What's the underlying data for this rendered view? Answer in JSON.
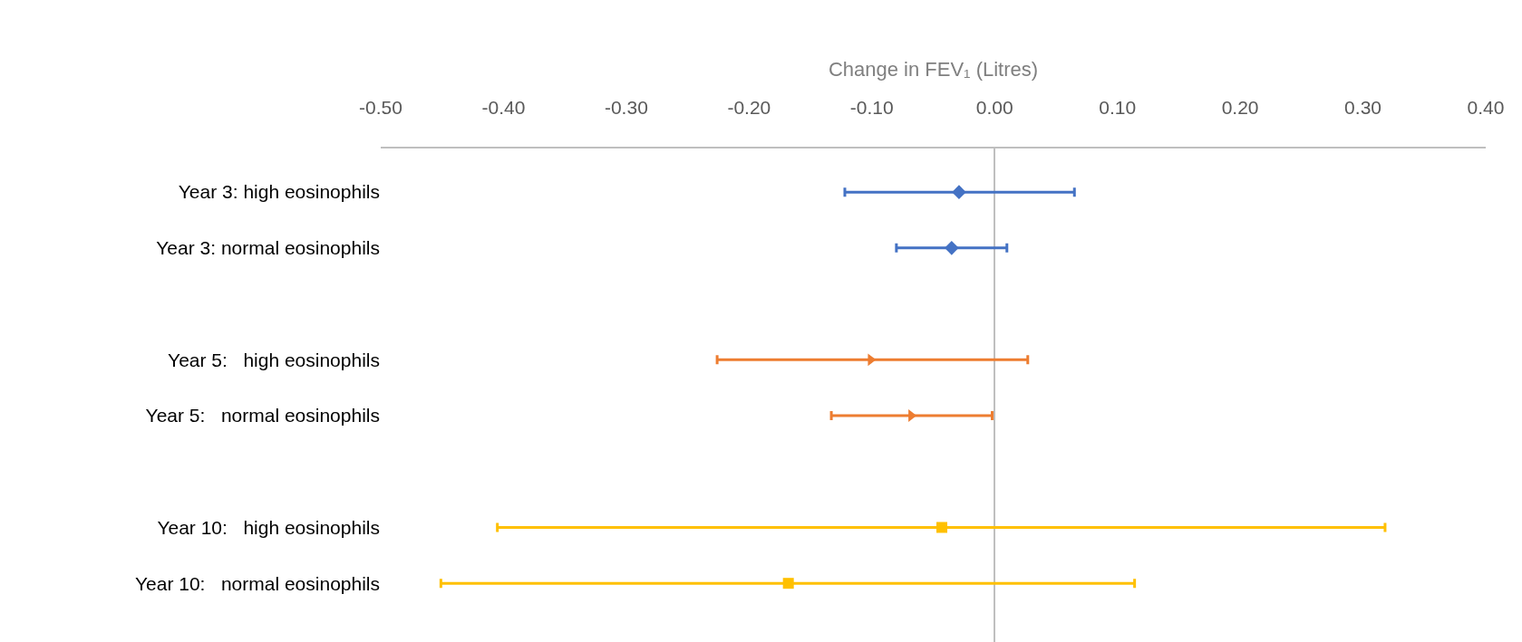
{
  "chart_data": {
    "type": "scatter",
    "orientation": "horizontal",
    "xlabel": "Change in FEV₁ (Litres)",
    "categories": [
      "Year 3: high eosinophils",
      "Year 3: normal eosinophils",
      null,
      "Year 5:   high eosinophils",
      "Year 5:   normal eosinophils",
      null,
      "Year 10:   high eosinophils",
      "Year 10:   normal eosinophils"
    ],
    "series": [
      {
        "color": "#4472c4",
        "marker": "diamond",
        "values": [
          -0.029,
          -0.035,
          null,
          null,
          null,
          null,
          null,
          null
        ],
        "errors": [
          [
            -0.122,
            0.065
          ],
          [
            -0.08,
            0.01
          ],
          null,
          null,
          null,
          null,
          null,
          null
        ]
      },
      {
        "color": "#ed7d31",
        "marker": "triangle",
        "values": [
          null,
          null,
          null,
          -0.101,
          -0.068,
          null,
          null,
          null
        ],
        "errors": [
          null,
          null,
          null,
          [
            -0.226,
            0.027
          ],
          [
            -0.133,
            -0.002
          ],
          null,
          null,
          null
        ]
      },
      {
        "color": "#ffc000",
        "marker": "square",
        "values": [
          null,
          null,
          null,
          null,
          null,
          null,
          -0.043,
          -0.168
        ],
        "errors": [
          null,
          null,
          null,
          null,
          null,
          null,
          [
            -0.405,
            0.318
          ],
          [
            -0.451,
            0.114
          ]
        ]
      }
    ],
    "xlim": [
      -0.5,
      0.4
    ],
    "xticks": [
      {
        "value": -0.5,
        "label": "-0.50"
      },
      {
        "value": -0.4,
        "label": "-0.40"
      },
      {
        "value": -0.3,
        "label": "-0.30"
      },
      {
        "value": -0.2,
        "label": "-0.20"
      },
      {
        "value": -0.1,
        "label": "-0.10"
      },
      {
        "value": 0,
        "label": "0.00"
      },
      {
        "value": 0.1,
        "label": "0.10"
      },
      {
        "value": 0.2,
        "label": "0.20"
      },
      {
        "value": 0.3,
        "label": "0.30"
      },
      {
        "value": 0.4,
        "label": "0.40"
      }
    ],
    "grid": false
  }
}
